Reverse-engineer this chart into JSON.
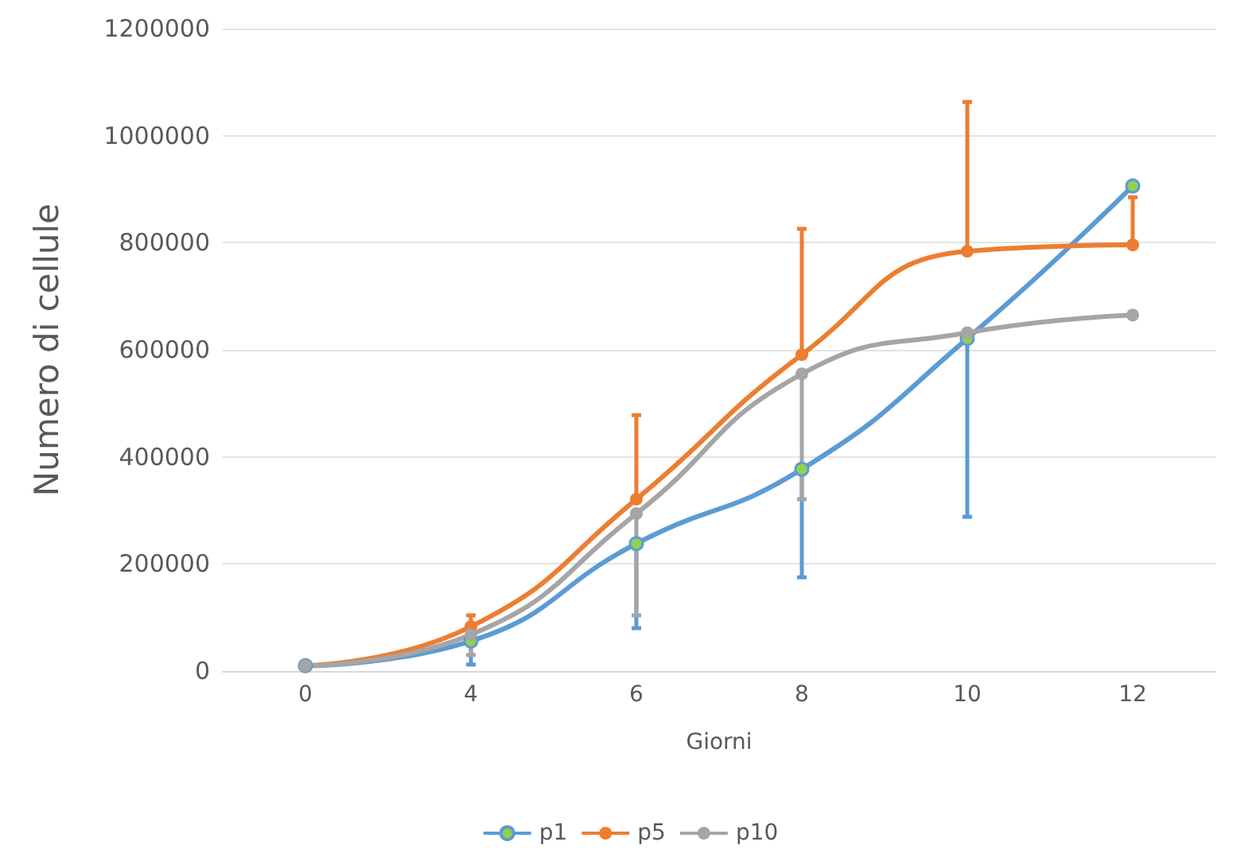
{
  "chart_data": {
    "type": "line",
    "xlabel": "Giorni",
    "ylabel": "Numero di cellule",
    "categories": [
      "0",
      "4",
      "6",
      "8",
      "10",
      "12"
    ],
    "series": [
      {
        "name": "p1",
        "color": "#5b9bd5",
        "values": [
          10000,
          56000,
          238000,
          377000,
          621000,
          906000
        ],
        "errors": [
          null,
          [
            12000,
            56000
          ],
          [
            80000,
            238000
          ],
          [
            175000,
            377000
          ],
          [
            288000,
            621000
          ],
          null
        ]
      },
      {
        "name": "p5",
        "color": "#ed7d31",
        "values": [
          10000,
          83000,
          321000,
          591000,
          784000,
          796000
        ],
        "errors": [
          null,
          [
            83000,
            104000
          ],
          [
            321000,
            478000
          ],
          [
            591000,
            826000
          ],
          [
            784000,
            1063000
          ],
          [
            796000,
            885000
          ]
        ]
      },
      {
        "name": "p10",
        "color": "#a5a5a5",
        "values": [
          10000,
          68000,
          294000,
          555000,
          632000,
          665000
        ],
        "errors": [
          null,
          [
            30000,
            68000
          ],
          [
            104000,
            294000
          ],
          [
            321000,
            555000
          ],
          null,
          null
        ]
      }
    ],
    "ylim": [
      0,
      1200000
    ],
    "yticks": [
      0,
      200000,
      400000,
      600000,
      800000,
      1000000,
      1200000
    ],
    "grid": "y",
    "legend": "bottom",
    "marker": "circle"
  }
}
